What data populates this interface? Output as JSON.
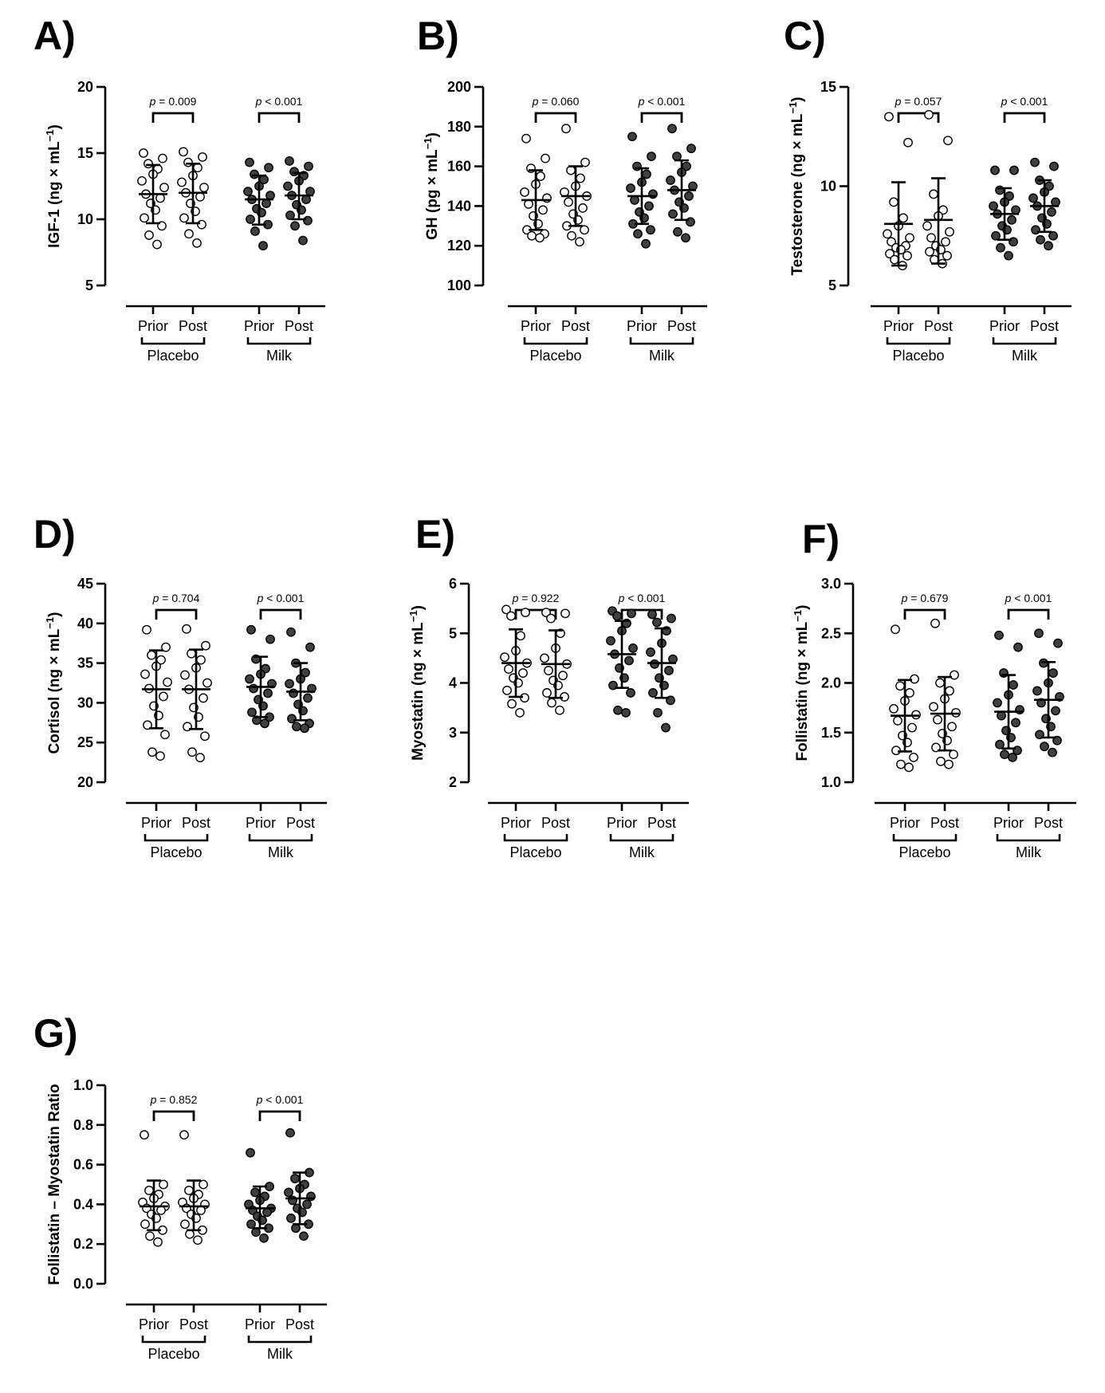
{
  "figure": {
    "group_labels": {
      "placebo": "Placebo",
      "milk": "Milk"
    },
    "time_labels": [
      "Prior",
      "Post"
    ],
    "colors": {
      "placebo_fill": "#ffffff",
      "milk_fill": "#404040",
      "stroke": "#000000"
    }
  },
  "chart_data": [
    {
      "panel": "A)",
      "type": "scatter",
      "ylabel": "IGF-1 (ng × mL",
      "ylabel_sup": "−1",
      "ylabel_tail": ")",
      "ylim": [
        5,
        20
      ],
      "yticks": [
        5,
        10,
        15,
        20
      ],
      "yticklabels": [
        "5",
        "10",
        "15",
        "20"
      ],
      "categories": [
        "Prior",
        "Post",
        "Prior",
        "Post"
      ],
      "groups": [
        "Placebo",
        "Milk"
      ],
      "pvalues": [
        "p = 0.009",
        "p < 0.001"
      ],
      "series": [
        {
          "group": "Placebo",
          "time": "Prior",
          "mean": 11.9,
          "sd_low": 9.7,
          "sd_high": 14.1,
          "points": [
            15.0,
            14.6,
            14.2,
            13.8,
            13.4,
            12.9,
            12.4,
            11.9,
            11.6,
            11.2,
            10.7,
            10.1,
            9.5,
            8.8,
            8.1
          ]
        },
        {
          "group": "Placebo",
          "time": "Post",
          "mean": 12.0,
          "sd_low": 9.7,
          "sd_high": 14.2,
          "points": [
            15.1,
            14.7,
            14.3,
            13.9,
            13.3,
            12.8,
            12.4,
            12.0,
            11.7,
            11.2,
            10.6,
            10.1,
            9.6,
            8.9,
            8.2
          ]
        },
        {
          "group": "Milk",
          "time": "Prior",
          "mean": 11.5,
          "sd_low": 9.6,
          "sd_high": 13.3,
          "points": [
            14.3,
            13.9,
            13.4,
            13.0,
            12.5,
            12.1,
            11.8,
            11.5,
            11.2,
            10.8,
            10.5,
            10.0,
            9.6,
            9.1,
            8.0
          ]
        },
        {
          "group": "Milk",
          "time": "Post",
          "mean": 11.8,
          "sd_low": 10.0,
          "sd_high": 13.5,
          "points": [
            14.4,
            14.0,
            13.6,
            13.3,
            12.9,
            12.5,
            12.1,
            11.8,
            11.5,
            11.1,
            10.7,
            10.3,
            9.9,
            9.5,
            8.4
          ]
        }
      ]
    },
    {
      "panel": "B)",
      "type": "scatter",
      "ylabel": "GH (pg × mL",
      "ylabel_sup": "−1",
      "ylabel_tail": ")",
      "ylim": [
        100,
        200
      ],
      "yticks": [
        100,
        120,
        140,
        160,
        180,
        200
      ],
      "yticklabels": [
        "100",
        "120",
        "140",
        "160",
        "180",
        "200"
      ],
      "categories": [
        "Prior",
        "Post",
        "Prior",
        "Post"
      ],
      "groups": [
        "Placebo",
        "Milk"
      ],
      "pvalues": [
        "p = 0.060",
        "p < 0.001"
      ],
      "series": [
        {
          "group": "Placebo",
          "time": "Prior",
          "mean": 143,
          "sd_low": 128,
          "sd_high": 158,
          "points": [
            174,
            164,
            159,
            155,
            151,
            147,
            144,
            141,
            138,
            135,
            131,
            128,
            126,
            125,
            124
          ]
        },
        {
          "group": "Placebo",
          "time": "Post",
          "mean": 145,
          "sd_low": 130,
          "sd_high": 160,
          "points": [
            179,
            162,
            158,
            154,
            150,
            147,
            145,
            142,
            139,
            136,
            133,
            130,
            128,
            125,
            122
          ]
        },
        {
          "group": "Milk",
          "time": "Prior",
          "mean": 145,
          "sd_low": 131,
          "sd_high": 159,
          "points": [
            175,
            165,
            160,
            156,
            152,
            149,
            146,
            143,
            140,
            137,
            134,
            131,
            128,
            126,
            121
          ]
        },
        {
          "group": "Milk",
          "time": "Post",
          "mean": 148,
          "sd_low": 133,
          "sd_high": 163,
          "points": [
            179,
            169,
            165,
            160,
            157,
            153,
            150,
            148,
            145,
            142,
            139,
            136,
            132,
            127,
            124
          ]
        }
      ]
    },
    {
      "panel": "C)",
      "type": "scatter",
      "ylabel": "Testosterone (ng × mL",
      "ylabel_sup": "−1",
      "ylabel_tail": ")",
      "ylim": [
        5,
        15
      ],
      "yticks": [
        5,
        10,
        15
      ],
      "yticklabels": [
        "5",
        "10",
        "15"
      ],
      "categories": [
        "Prior",
        "Post",
        "Prior",
        "Post"
      ],
      "groups": [
        "Placebo",
        "Milk"
      ],
      "pvalues": [
        "p = 0.057",
        "p < 0.001"
      ],
      "series": [
        {
          "group": "Placebo",
          "time": "Prior",
          "mean": 8.1,
          "sd_low": 6.0,
          "sd_high": 10.2,
          "points": [
            13.5,
            12.2,
            9.2,
            8.4,
            8.0,
            7.6,
            7.4,
            7.2,
            7.0,
            6.9,
            6.8,
            6.6,
            6.5,
            6.3,
            6.0
          ]
        },
        {
          "group": "Placebo",
          "time": "Post",
          "mean": 8.3,
          "sd_low": 6.1,
          "sd_high": 10.4,
          "points": [
            13.6,
            12.3,
            9.6,
            8.8,
            8.5,
            8.0,
            7.7,
            7.4,
            7.2,
            7.0,
            6.8,
            6.7,
            6.5,
            6.3,
            6.1
          ]
        },
        {
          "group": "Milk",
          "time": "Prior",
          "mean": 8.6,
          "sd_low": 7.3,
          "sd_high": 9.9,
          "points": [
            10.8,
            10.8,
            9.8,
            9.5,
            9.2,
            9.0,
            8.8,
            8.6,
            8.3,
            8.0,
            7.8,
            7.5,
            7.2,
            6.9,
            6.5
          ]
        },
        {
          "group": "Milk",
          "time": "Post",
          "mean": 9.0,
          "sd_low": 7.7,
          "sd_high": 10.3,
          "points": [
            11.2,
            11.0,
            10.3,
            10.0,
            9.7,
            9.4,
            9.2,
            9.0,
            8.7,
            8.4,
            8.1,
            7.8,
            7.5,
            7.3,
            7.0
          ]
        }
      ]
    },
    {
      "panel": "D)",
      "type": "scatter",
      "ylabel": "Cortisol (ng × mL",
      "ylabel_sup": "−1",
      "ylabel_tail": ")",
      "ylim": [
        20,
        45
      ],
      "yticks": [
        20,
        25,
        30,
        35,
        40,
        45
      ],
      "yticklabels": [
        "20",
        "25",
        "30",
        "35",
        "40",
        "45"
      ],
      "categories": [
        "Prior",
        "Post",
        "Prior",
        "Post"
      ],
      "groups": [
        "Placebo",
        "Milk"
      ],
      "pvalues": [
        "p = 0.704",
        "p < 0.001"
      ],
      "series": [
        {
          "group": "Placebo",
          "time": "Prior",
          "mean": 31.7,
          "sd_low": 26.8,
          "sd_high": 36.6,
          "points": [
            39.2,
            37.0,
            36.0,
            35.4,
            34.6,
            33.6,
            32.6,
            31.8,
            30.8,
            29.6,
            28.4,
            27.2,
            26.0,
            23.8,
            23.3
          ]
        },
        {
          "group": "Placebo",
          "time": "Post",
          "mean": 31.7,
          "sd_low": 26.7,
          "sd_high": 36.7,
          "points": [
            39.3,
            37.2,
            36.2,
            35.4,
            34.4,
            33.5,
            32.5,
            31.7,
            30.6,
            29.4,
            28.2,
            27.0,
            25.8,
            23.8,
            23.1
          ]
        },
        {
          "group": "Milk",
          "time": "Prior",
          "mean": 32.0,
          "sd_low": 28.2,
          "sd_high": 35.8,
          "points": [
            39.2,
            38.0,
            35.5,
            34.3,
            33.6,
            33.0,
            32.4,
            31.8,
            31.2,
            30.4,
            29.6,
            28.8,
            28.2,
            27.8,
            27.4
          ]
        },
        {
          "group": "Milk",
          "time": "Post",
          "mean": 31.4,
          "sd_low": 27.8,
          "sd_high": 35.0,
          "points": [
            38.9,
            37.0,
            35.0,
            33.8,
            33.0,
            32.4,
            31.8,
            31.2,
            30.6,
            29.8,
            29.0,
            28.0,
            27.4,
            27.0,
            26.8
          ]
        }
      ]
    },
    {
      "panel": "E)",
      "type": "scatter",
      "ylabel": "Myostatin (ng × mL",
      "ylabel_sup": "−1",
      "ylabel_tail": ")",
      "ylim": [
        2,
        6
      ],
      "yticks": [
        2,
        3,
        4,
        5,
        6
      ],
      "yticklabels": [
        "2",
        "3",
        "4",
        "5",
        "6"
      ],
      "categories": [
        "Prior",
        "Post",
        "Prior",
        "Post"
      ],
      "groups": [
        "Placebo",
        "Milk"
      ],
      "pvalues": [
        "p = 0.922",
        "p < 0.001"
      ],
      "series": [
        {
          "group": "Placebo",
          "time": "Prior",
          "mean": 4.4,
          "sd_low": 3.72,
          "sd_high": 5.08,
          "points": [
            5.48,
            5.42,
            5.35,
            4.95,
            4.65,
            4.52,
            4.4,
            4.28,
            4.2,
            4.1,
            4.0,
            3.85,
            3.7,
            3.58,
            3.4
          ]
        },
        {
          "group": "Placebo",
          "time": "Post",
          "mean": 4.38,
          "sd_low": 3.7,
          "sd_high": 5.06,
          "points": [
            5.42,
            5.4,
            5.3,
            5.0,
            4.7,
            4.5,
            4.38,
            4.25,
            4.15,
            4.05,
            3.95,
            3.8,
            3.72,
            3.6,
            3.45
          ]
        },
        {
          "group": "Milk",
          "time": "Prior",
          "mean": 4.58,
          "sd_low": 3.9,
          "sd_high": 5.25,
          "points": [
            5.45,
            5.4,
            5.35,
            5.2,
            5.05,
            4.85,
            4.7,
            4.58,
            4.45,
            4.3,
            4.1,
            3.95,
            3.8,
            3.45,
            3.4
          ]
        },
        {
          "group": "Milk",
          "time": "Post",
          "mean": 4.4,
          "sd_low": 3.7,
          "sd_high": 5.1,
          "points": [
            5.38,
            5.3,
            5.22,
            5.05,
            4.8,
            4.62,
            4.48,
            4.38,
            4.25,
            4.1,
            3.95,
            3.8,
            3.65,
            3.4,
            3.1
          ]
        }
      ]
    },
    {
      "panel": "F)",
      "type": "scatter",
      "ylabel": "Follistatin (ng × mL",
      "ylabel_sup": "−1",
      "ylabel_tail": ")",
      "ylim": [
        1.0,
        3.0
      ],
      "yticks": [
        1.0,
        1.5,
        2.0,
        2.5,
        3.0
      ],
      "yticklabels": [
        "1.0",
        "1.5",
        "2.0",
        "2.5",
        "3.0"
      ],
      "categories": [
        "Prior",
        "Post",
        "Prior",
        "Post"
      ],
      "groups": [
        "Placebo",
        "Milk"
      ],
      "pvalues": [
        "p = 0.679",
        "p < 0.001"
      ],
      "series": [
        {
          "group": "Placebo",
          "time": "Prior",
          "mean": 1.67,
          "sd_low": 1.31,
          "sd_high": 2.03,
          "points": [
            2.54,
            2.04,
            1.97,
            1.9,
            1.82,
            1.74,
            1.68,
            1.62,
            1.55,
            1.47,
            1.4,
            1.32,
            1.25,
            1.18,
            1.15
          ]
        },
        {
          "group": "Placebo",
          "time": "Post",
          "mean": 1.69,
          "sd_low": 1.32,
          "sd_high": 2.06,
          "points": [
            2.6,
            2.08,
            2.0,
            1.92,
            1.84,
            1.76,
            1.7,
            1.63,
            1.56,
            1.49,
            1.42,
            1.35,
            1.28,
            1.21,
            1.18
          ]
        },
        {
          "group": "Milk",
          "time": "Prior",
          "mean": 1.71,
          "sd_low": 1.34,
          "sd_high": 2.08,
          "points": [
            2.48,
            2.36,
            2.1,
            1.98,
            1.88,
            1.8,
            1.73,
            1.67,
            1.6,
            1.52,
            1.45,
            1.38,
            1.32,
            1.28,
            1.25
          ]
        },
        {
          "group": "Milk",
          "time": "Post",
          "mean": 1.83,
          "sd_low": 1.45,
          "sd_high": 2.21,
          "points": [
            2.5,
            2.4,
            2.2,
            2.1,
            2.0,
            1.92,
            1.86,
            1.8,
            1.72,
            1.64,
            1.56,
            1.48,
            1.42,
            1.36,
            1.3
          ]
        }
      ]
    },
    {
      "panel": "G)",
      "type": "scatter",
      "ylabel": "Follistatin – Myostatin Ratio",
      "ylabel_sup": "",
      "ylabel_tail": "",
      "ylim": [
        0.0,
        1.0
      ],
      "yticks": [
        0.0,
        0.2,
        0.4,
        0.6,
        0.8,
        1.0
      ],
      "yticklabels": [
        "0.0",
        "0.2",
        "0.4",
        "0.6",
        "0.8",
        "1.0"
      ],
      "categories": [
        "Prior",
        "Post",
        "Prior",
        "Post"
      ],
      "groups": [
        "Placebo",
        "Milk"
      ],
      "pvalues": [
        "p = 0.852",
        "p < 0.001"
      ],
      "series": [
        {
          "group": "Placebo",
          "time": "Prior",
          "mean": 0.39,
          "sd_low": 0.27,
          "sd_high": 0.52,
          "points": [
            0.75,
            0.5,
            0.47,
            0.45,
            0.43,
            0.41,
            0.39,
            0.38,
            0.37,
            0.35,
            0.33,
            0.3,
            0.27,
            0.24,
            0.21
          ]
        },
        {
          "group": "Placebo",
          "time": "Post",
          "mean": 0.39,
          "sd_low": 0.27,
          "sd_high": 0.52,
          "points": [
            0.75,
            0.5,
            0.47,
            0.45,
            0.43,
            0.41,
            0.4,
            0.38,
            0.37,
            0.35,
            0.33,
            0.3,
            0.27,
            0.25,
            0.22
          ]
        },
        {
          "group": "Milk",
          "time": "Prior",
          "mean": 0.38,
          "sd_low": 0.28,
          "sd_high": 0.49,
          "points": [
            0.66,
            0.49,
            0.46,
            0.44,
            0.42,
            0.4,
            0.38,
            0.37,
            0.36,
            0.34,
            0.32,
            0.3,
            0.28,
            0.26,
            0.23
          ]
        },
        {
          "group": "Milk",
          "time": "Post",
          "mean": 0.43,
          "sd_low": 0.3,
          "sd_high": 0.56,
          "points": [
            0.76,
            0.56,
            0.53,
            0.5,
            0.48,
            0.46,
            0.44,
            0.42,
            0.4,
            0.38,
            0.36,
            0.33,
            0.3,
            0.28,
            0.24
          ]
        }
      ]
    }
  ]
}
